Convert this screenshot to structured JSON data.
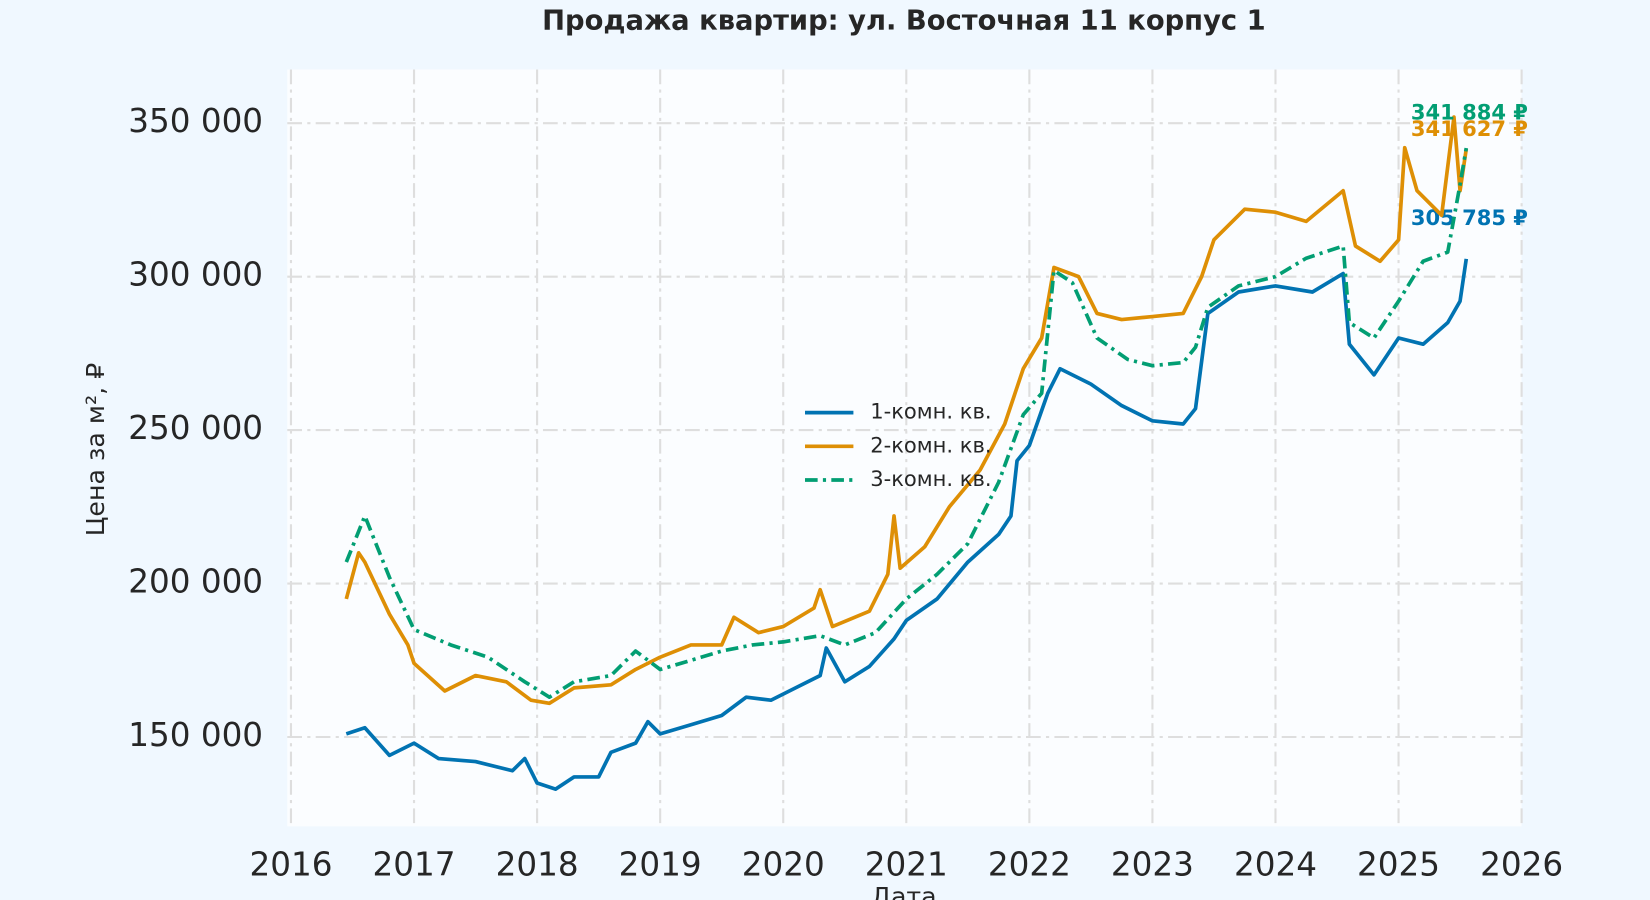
{
  "chart_data": {
    "type": "line",
    "title": "Продажа квартир: ул. Восточная 11 корпус 1",
    "x_label": "Дата",
    "y_label": "Цена за м², ₽",
    "xlim": [
      2015.97,
      2026.0
    ],
    "xticks": [
      2016,
      2017,
      2018,
      2019,
      2020,
      2021,
      2022,
      2023,
      2024,
      2025,
      2026
    ],
    "ylim": [
      120900,
      367500
    ],
    "yticks": [
      {
        "value": 150000,
        "label": "150 000"
      },
      {
        "value": 200000,
        "label": "200 000"
      },
      {
        "value": 250000,
        "label": "250 000"
      },
      {
        "value": 300000,
        "label": "300 000"
      },
      {
        "value": 350000,
        "label": "350 000"
      }
    ],
    "grid": true,
    "legend": "center",
    "series": [
      {
        "name": "1-комн. кв.",
        "color": "#0173b2",
        "linestyle": "solid",
        "x": [
          2016.45,
          2016.6,
          2016.8,
          2017.0,
          2017.2,
          2017.5,
          2017.8,
          2017.9,
          2018.0,
          2018.15,
          2018.3,
          2018.5,
          2018.6,
          2018.8,
          2018.9,
          2019.0,
          2019.25,
          2019.5,
          2019.7,
          2019.9,
          2020.1,
          2020.3,
          2020.35,
          2020.5,
          2020.7,
          2020.9,
          2021.0,
          2021.25,
          2021.5,
          2021.75,
          2021.85,
          2021.9,
          2022.0,
          2022.15,
          2022.25,
          2022.5,
          2022.75,
          2023.0,
          2023.25,
          2023.35,
          2023.45,
          2023.7,
          2024.0,
          2024.3,
          2024.55,
          2024.6,
          2024.8,
          2025.0,
          2025.2,
          2025.4,
          2025.5,
          2025.55
        ],
        "values": [
          151000,
          153000,
          144000,
          148000,
          143000,
          142000,
          139000,
          143000,
          135000,
          133000,
          137000,
          137000,
          145000,
          148000,
          155000,
          151000,
          154000,
          157000,
          163000,
          162000,
          166000,
          170000,
          179000,
          168000,
          173000,
          182000,
          188000,
          195000,
          207000,
          216000,
          222000,
          240000,
          245000,
          262000,
          270000,
          265000,
          258000,
          253000,
          252000,
          257000,
          288000,
          295000,
          297000,
          295000,
          301000,
          278000,
          268000,
          280000,
          278000,
          285000,
          292000,
          305785
        ],
        "value_labels": [
          null,
          null,
          null,
          null,
          null,
          null,
          null,
          null,
          null,
          null,
          null,
          null,
          null,
          null,
          null,
          null,
          null,
          null,
          null,
          null,
          null,
          null,
          null,
          null,
          null,
          null,
          null,
          null,
          null,
          null,
          null,
          null,
          null,
          null,
          null,
          null,
          null,
          null,
          null,
          null,
          null,
          null,
          null,
          null,
          null,
          null,
          null,
          null,
          null,
          null,
          null,
          "305 785 ₽"
        ]
      },
      {
        "name": "2-комн. кв.",
        "color": "#de8f05",
        "linestyle": "solid",
        "x": [
          2016.45,
          2016.55,
          2016.6,
          2016.8,
          2016.95,
          2017.0,
          2017.25,
          2017.5,
          2017.75,
          2017.95,
          2018.1,
          2018.3,
          2018.6,
          2018.8,
          2019.0,
          2019.25,
          2019.5,
          2019.6,
          2019.8,
          2020.0,
          2020.25,
          2020.3,
          2020.4,
          2020.7,
          2020.85,
          2020.9,
          2020.95,
          2021.15,
          2021.35,
          2021.6,
          2021.8,
          2021.95,
          2022.1,
          2022.2,
          2022.4,
          2022.55,
          2022.75,
          2023.0,
          2023.25,
          2023.4,
          2023.5,
          2023.75,
          2024.0,
          2024.25,
          2024.55,
          2024.65,
          2024.85,
          2025.0,
          2025.05,
          2025.15,
          2025.35,
          2025.45,
          2025.5,
          2025.55
        ],
        "values": [
          195000,
          210000,
          207000,
          190000,
          180000,
          174000,
          165000,
          170000,
          168000,
          162000,
          161000,
          166000,
          167000,
          172000,
          176000,
          180000,
          180000,
          189000,
          184000,
          186000,
          192000,
          198000,
          186000,
          191000,
          203000,
          222000,
          205000,
          212000,
          225000,
          237000,
          252000,
          270000,
          280000,
          303000,
          300000,
          288000,
          286000,
          287000,
          288000,
          300000,
          312000,
          322000,
          321000,
          318000,
          328000,
          310000,
          305000,
          312000,
          342000,
          328000,
          320000,
          352000,
          328000,
          341627
        ],
        "value_labels": [
          null,
          null,
          null,
          null,
          null,
          null,
          null,
          null,
          null,
          null,
          null,
          null,
          null,
          null,
          null,
          null,
          null,
          null,
          null,
          null,
          null,
          null,
          null,
          null,
          null,
          null,
          null,
          null,
          null,
          null,
          null,
          null,
          null,
          null,
          null,
          null,
          null,
          null,
          null,
          null,
          null,
          null,
          null,
          null,
          null,
          null,
          null,
          null,
          null,
          null,
          null,
          null,
          null,
          "341 627 ₽"
        ]
      },
      {
        "name": "3-комн. кв.",
        "color": "#029e73",
        "linestyle": "dashdot",
        "x": [
          2016.45,
          2016.6,
          2016.8,
          2017.0,
          2017.3,
          2017.6,
          2017.9,
          2018.1,
          2018.3,
          2018.6,
          2018.8,
          2019.0,
          2019.25,
          2019.5,
          2019.75,
          2020.0,
          2020.3,
          2020.5,
          2020.75,
          2021.0,
          2021.25,
          2021.5,
          2021.75,
          2021.95,
          2022.1,
          2022.2,
          2022.35,
          2022.55,
          2022.8,
          2023.0,
          2023.25,
          2023.35,
          2023.45,
          2023.7,
          2024.0,
          2024.25,
          2024.55,
          2024.6,
          2024.8,
          2025.0,
          2025.2,
          2025.4,
          2025.5,
          2025.55
        ],
        "values": [
          207000,
          222000,
          202000,
          185000,
          180000,
          176000,
          168000,
          163000,
          168000,
          170000,
          178000,
          172000,
          175000,
          178000,
          180000,
          181000,
          183000,
          180000,
          184000,
          195000,
          203000,
          213000,
          233000,
          255000,
          262000,
          302000,
          298000,
          280000,
          273000,
          271000,
          272000,
          277000,
          290000,
          297000,
          300000,
          306000,
          310000,
          285000,
          280000,
          292000,
          305000,
          308000,
          330000,
          341884
        ],
        "value_labels": [
          null,
          null,
          null,
          null,
          null,
          null,
          null,
          null,
          null,
          null,
          null,
          null,
          null,
          null,
          null,
          null,
          null,
          null,
          null,
          null,
          null,
          null,
          null,
          null,
          null,
          null,
          null,
          null,
          null,
          null,
          null,
          null,
          null,
          null,
          null,
          null,
          null,
          null,
          null,
          null,
          null,
          null,
          null,
          "341 884 ₽"
        ]
      }
    ]
  }
}
